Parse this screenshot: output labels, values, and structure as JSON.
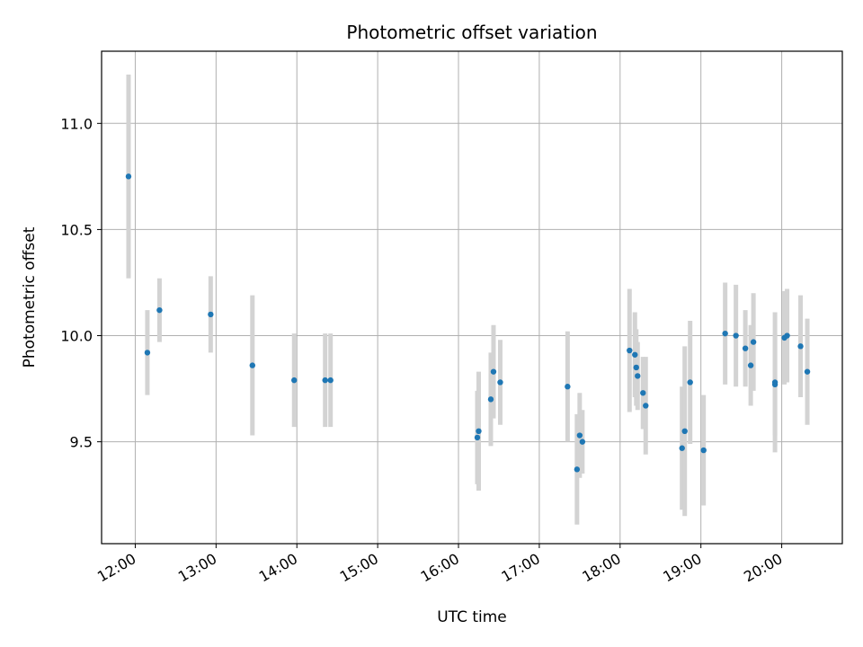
{
  "chart_data": {
    "type": "scatter",
    "title": "Photometric offset variation",
    "xlabel": "UTC time",
    "ylabel": "Photometric offset",
    "x_axis": "time",
    "xlim": [
      "11:35",
      "20:45"
    ],
    "ylim": [
      9.02,
      11.34
    ],
    "xticks": [
      "12:00",
      "13:00",
      "14:00",
      "15:00",
      "16:00",
      "17:00",
      "18:00",
      "19:00",
      "20:00"
    ],
    "yticks": [
      "9.5",
      "10.0",
      "10.5",
      "11.0"
    ],
    "grid": true,
    "legend": "none",
    "marker_color": "#1f77b4",
    "errorbar_color": "#d3d3d3",
    "series": [
      {
        "points": [
          {
            "x": "11:55",
            "y": 10.75,
            "yerr": 0.48
          },
          {
            "x": "12:09",
            "y": 9.92,
            "yerr": 0.2
          },
          {
            "x": "12:18",
            "y": 10.12,
            "yerr": 0.15
          },
          {
            "x": "12:56",
            "y": 10.1,
            "yerr": 0.18
          },
          {
            "x": "13:27",
            "y": 9.86,
            "yerr": 0.33
          },
          {
            "x": "13:58",
            "y": 9.79,
            "yerr": 0.22
          },
          {
            "x": "14:21",
            "y": 9.79,
            "yerr": 0.22
          },
          {
            "x": "14:25",
            "y": 9.79,
            "yerr": 0.22
          },
          {
            "x": "16:14",
            "y": 9.52,
            "yerr": 0.22
          },
          {
            "x": "16:15",
            "y": 9.55,
            "yerr": 0.28
          },
          {
            "x": "16:24",
            "y": 9.7,
            "yerr": 0.22
          },
          {
            "x": "16:26",
            "y": 9.83,
            "yerr": 0.22
          },
          {
            "x": "16:31",
            "y": 9.78,
            "yerr": 0.2
          },
          {
            "x": "17:21",
            "y": 9.76,
            "yerr": 0.26
          },
          {
            "x": "17:28",
            "y": 9.37,
            "yerr": 0.26
          },
          {
            "x": "17:30",
            "y": 9.53,
            "yerr": 0.2
          },
          {
            "x": "17:32",
            "y": 9.5,
            "yerr": 0.15
          },
          {
            "x": "18:07",
            "y": 9.93,
            "yerr": 0.29
          },
          {
            "x": "18:11",
            "y": 9.91,
            "yerr": 0.2
          },
          {
            "x": "18:12",
            "y": 9.85,
            "yerr": 0.18
          },
          {
            "x": "18:13",
            "y": 9.81,
            "yerr": 0.16
          },
          {
            "x": "18:17",
            "y": 9.73,
            "yerr": 0.17
          },
          {
            "x": "18:19",
            "y": 9.67,
            "yerr": 0.23
          },
          {
            "x": "18:46",
            "y": 9.47,
            "yerr": 0.29
          },
          {
            "x": "18:48",
            "y": 9.55,
            "yerr": 0.4
          },
          {
            "x": "18:52",
            "y": 9.78,
            "yerr": 0.29
          },
          {
            "x": "19:02",
            "y": 9.46,
            "yerr": 0.26
          },
          {
            "x": "19:18",
            "y": 10.01,
            "yerr": 0.24
          },
          {
            "x": "19:26",
            "y": 10.0,
            "yerr": 0.24
          },
          {
            "x": "19:33",
            "y": 9.94,
            "yerr": 0.18
          },
          {
            "x": "19:37",
            "y": 9.86,
            "yerr": 0.19
          },
          {
            "x": "19:39",
            "y": 9.97,
            "yerr": 0.23
          },
          {
            "x": "19:55",
            "y": 9.78,
            "yerr": 0.33
          },
          {
            "x": "19:55",
            "y": 9.77,
            "yerr": 0.24
          },
          {
            "x": "20:02",
            "y": 9.99,
            "yerr": 0.22
          },
          {
            "x": "20:04",
            "y": 10.0,
            "yerr": 0.22
          },
          {
            "x": "20:14",
            "y": 9.95,
            "yerr": 0.24
          },
          {
            "x": "20:19",
            "y": 9.83,
            "yerr": 0.25
          }
        ]
      }
    ]
  }
}
